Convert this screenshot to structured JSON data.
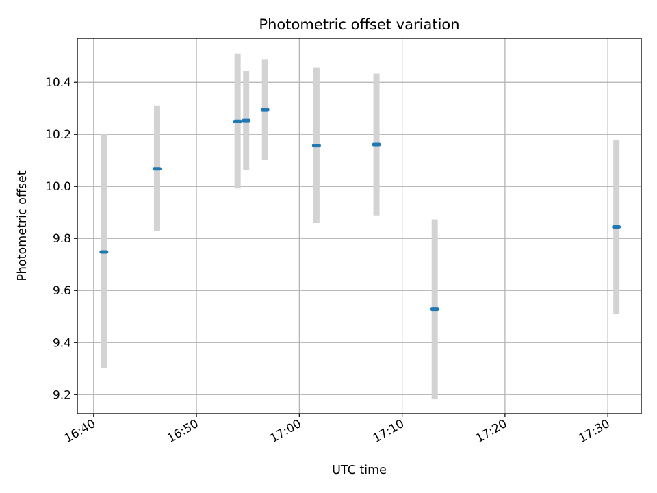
{
  "chart_data": {
    "type": "scatter",
    "title": "Photometric offset variation",
    "xlabel": "UTC time",
    "ylabel": "Photometric offset",
    "x_ticks": [
      "16:40",
      "16:50",
      "17:00",
      "17:10",
      "17:20",
      "17:30"
    ],
    "y_ticks": [
      "9.2",
      "9.4",
      "9.6",
      "9.8",
      "10.0",
      "10.2",
      "10.4"
    ],
    "xlim": [
      "16:38:25",
      "17:33:15"
    ],
    "ylim": [
      9.127,
      10.569
    ],
    "grid": true,
    "points": [
      {
        "time": "16:41:00",
        "value": 9.748,
        "err_low": 9.302,
        "err_high": 10.201
      },
      {
        "time": "16:46:10",
        "value": 10.067,
        "err_low": 9.829,
        "err_high": 10.309
      },
      {
        "time": "16:54:00",
        "value": 10.25,
        "err_low": 9.992,
        "err_high": 10.509
      },
      {
        "time": "16:54:50",
        "value": 10.253,
        "err_low": 10.062,
        "err_high": 10.443
      },
      {
        "time": "16:56:40",
        "value": 10.295,
        "err_low": 10.102,
        "err_high": 10.489
      },
      {
        "time": "17:01:40",
        "value": 10.157,
        "err_low": 9.86,
        "err_high": 10.457
      },
      {
        "time": "17:07:30",
        "value": 10.161,
        "err_low": 9.888,
        "err_high": 10.433
      },
      {
        "time": "17:13:10",
        "value": 9.528,
        "err_low": 9.182,
        "err_high": 9.873
      },
      {
        "time": "17:30:50",
        "value": 9.844,
        "err_low": 9.511,
        "err_high": 10.178
      }
    ],
    "colors": {
      "marker": "#1f77b4",
      "errorbar": "#d3d3d3",
      "grid": "#b0b0b0"
    }
  }
}
